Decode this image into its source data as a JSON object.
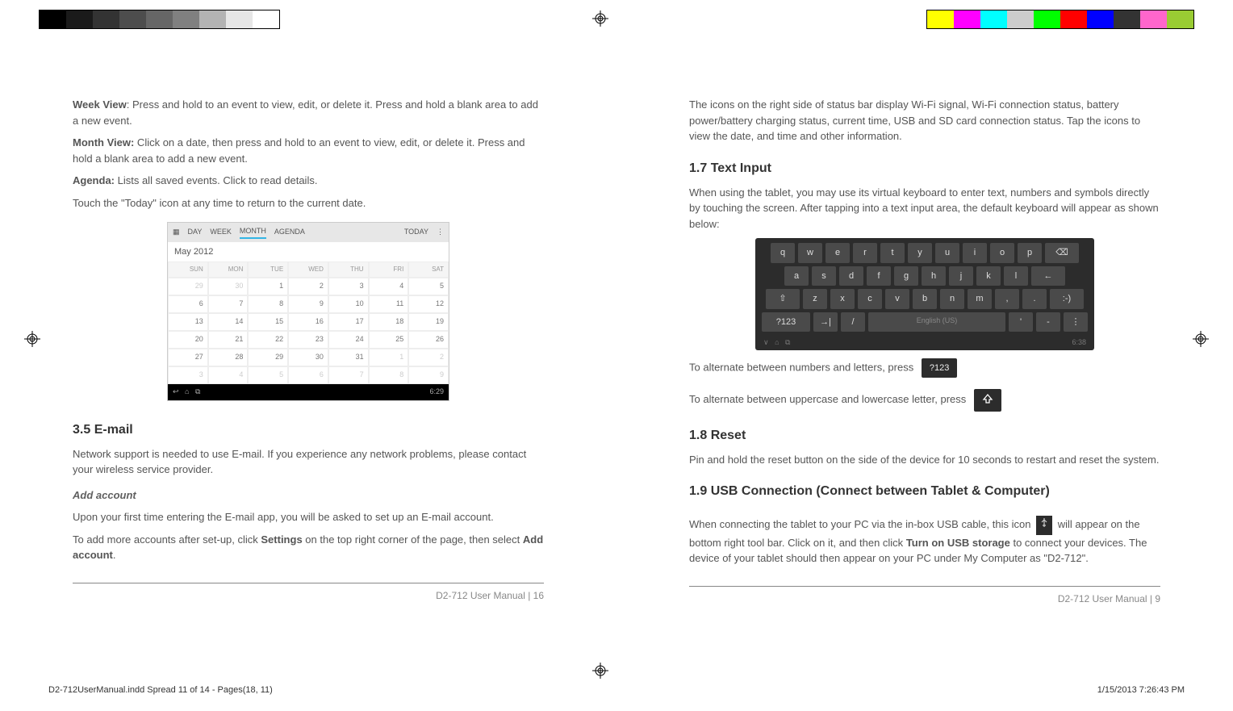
{
  "grayscale": [
    "#000000",
    "#1a1a1a",
    "#333333",
    "#4d4d4d",
    "#666666",
    "#808080",
    "#b3b3b3",
    "#e6e6e6",
    "#ffffff"
  ],
  "colors": [
    "#ffff00",
    "#ff00ff",
    "#00ffff",
    "#cccccc",
    "#00ff00",
    "#ff0000",
    "#0000ff",
    "#333333",
    "#ff66cc",
    "#99cc33"
  ],
  "left": {
    "weekview_label": "Week View",
    "weekview_text": ": Press and hold to an event to view, edit, or delete it. Press and hold a blank area to add a new event.",
    "monthview_label": "Month View:",
    "monthview_text": " Click on a date, then press and hold to an event to view, edit, or delete it. Press and hold a blank area to add a new event.",
    "agenda_label": "Agenda:",
    "agenda_text": " Lists all saved events. Click to read details.",
    "today_text": "Touch the \"Today\" icon at any time to return to the current date.",
    "cal": {
      "tabs": [
        "DAY",
        "WEEK",
        "MONTH",
        "AGENDA"
      ],
      "today": "TODAY",
      "month": "May 2012",
      "head": [
        "SUN",
        "MON",
        "TUE",
        "WED",
        "THU",
        "FRI",
        "SAT"
      ],
      "rows": [
        {
          "cells": [
            "29",
            "30",
            "1",
            "2",
            "3",
            "4",
            "5"
          ],
          "faded": [
            0,
            1
          ]
        },
        {
          "cells": [
            "6",
            "7",
            "8",
            "9",
            "10",
            "11",
            "12"
          ],
          "faded": []
        },
        {
          "cells": [
            "13",
            "14",
            "15",
            "16",
            "17",
            "18",
            "19"
          ],
          "faded": []
        },
        {
          "cells": [
            "20",
            "21",
            "22",
            "23",
            "24",
            "25",
            "26"
          ],
          "faded": []
        },
        {
          "cells": [
            "27",
            "28",
            "29",
            "30",
            "31",
            "1",
            "2"
          ],
          "faded": [
            5,
            6
          ]
        },
        {
          "cells": [
            "3",
            "4",
            "5",
            "6",
            "7",
            "8",
            "9"
          ],
          "faded": [
            0,
            1,
            2,
            3,
            4,
            5,
            6
          ]
        }
      ],
      "navtime": "6:29"
    },
    "email_heading": "3.5 E-mail",
    "email_p1": "Network support is needed to use E-mail. If you experience any network problems, please contact your wireless service provider.",
    "addacct_heading": "Add account",
    "addacct_p1": "Upon your first time entering the E-mail app, you will be asked to set up an E-mail account.",
    "addacct_p2a": "To add more accounts after set-up, click ",
    "addacct_p2b": "Settings",
    "addacct_p2c": " on the top right corner of the page, then select ",
    "addacct_p2d": "Add account",
    "addacct_p2e": ".",
    "footer": "D2-712 User Manual | 16"
  },
  "right": {
    "status_p": "The icons on the right side of status bar display Wi-Fi signal, Wi-Fi connection status, battery power/battery charging status, current time, USB and SD card connection status. Tap the icons to view the date, and time and other information.",
    "text_input_heading": "1.7 Text Input",
    "text_input_p": "When using the tablet, you may use its virtual keyboard to enter text, numbers and symbols directly by touching the screen. After tapping into a text input area, the default keyboard will appear as shown below:",
    "kb_row1": [
      "q",
      "w",
      "e",
      "r",
      "t",
      "y",
      "u",
      "i",
      "o",
      "p",
      "⌫"
    ],
    "kb_row2": [
      "a",
      "s",
      "d",
      "f",
      "g",
      "h",
      "j",
      "k",
      "l",
      "←"
    ],
    "kb_row3": [
      "⇧",
      "z",
      "x",
      "c",
      "v",
      "b",
      "n",
      "m",
      ",",
      ".",
      ":-)"
    ],
    "kb_row4_left": [
      "?123",
      "→|",
      "/"
    ],
    "kb_space": "English (US)",
    "kb_row4_right": [
      "'",
      "-",
      "⋮"
    ],
    "kb_navtime": "6:38",
    "alt_numbers": "To alternate between numbers and letters, press",
    "key_numbers": "?123",
    "alt_case": "To alternate between uppercase and lowercase letter, press",
    "reset_heading": "1.8 Reset",
    "reset_p": "Pin and hold the reset button on the side of the device for 10 seconds to restart and reset the system.",
    "usb_heading": "1.9 USB Connection (Connect between Tablet & Computer)",
    "usb_p1a": "When connecting the tablet to your PC via the in-box USB cable, this icon ",
    "usb_p1b": " will appear on the bottom right tool bar. Click on it, and then click ",
    "usb_p1c": "Turn on USB storage",
    "usb_p1d": " to connect your devices. The device of your tablet should then appear on your PC under My Computer as \"D2-712\".",
    "footer": "D2-712 User Manual | 9"
  },
  "meta": {
    "file": "D2-712UserManual.indd   Spread 11 of 14 - Pages(18, 11)",
    "datetime": "1/15/2013   7:26:43 PM"
  }
}
